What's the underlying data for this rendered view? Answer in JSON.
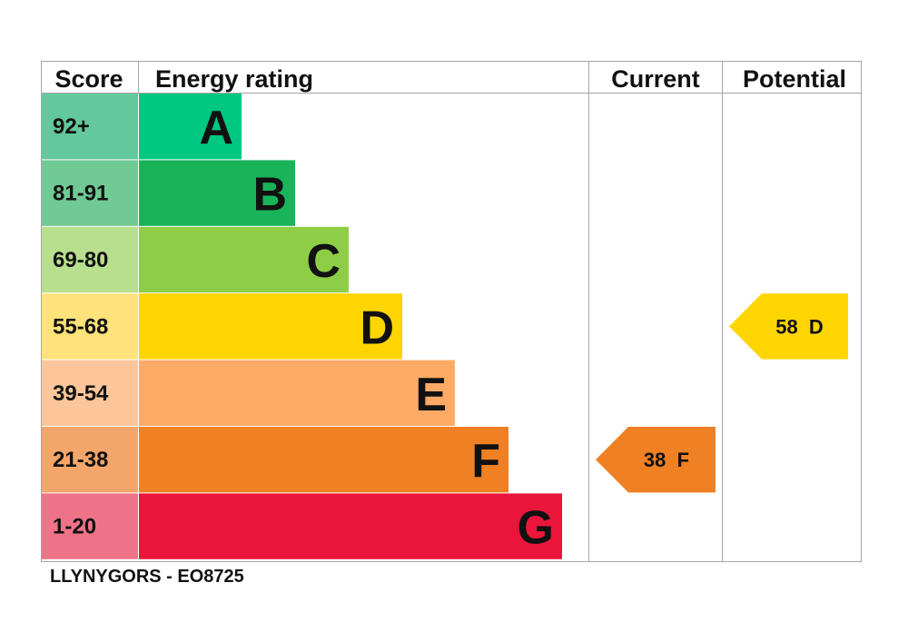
{
  "headers": {
    "score": "Score",
    "energy_rating": "Energy rating",
    "current": "Current",
    "potential": "Potential"
  },
  "footer": "LLYNYGORS - EO8725",
  "chart_data": {
    "type": "bar",
    "bands": [
      {
        "letter": "A",
        "score_range": "92+",
        "color": "#00c781",
        "score_color": "#63c89b"
      },
      {
        "letter": "B",
        "score_range": "81-91",
        "color": "#19b459",
        "score_color": "#6fca94"
      },
      {
        "letter": "C",
        "score_range": "69-80",
        "color": "#8dce46",
        "score_color": "#b8df8e"
      },
      {
        "letter": "D",
        "score_range": "55-68",
        "color": "#ffd500",
        "score_color": "#ffe27a"
      },
      {
        "letter": "E",
        "score_range": "39-54",
        "color": "#fcaa65",
        "score_color": "#fcc69a"
      },
      {
        "letter": "F",
        "score_range": "21-38",
        "color": "#ef8023",
        "score_color": "#f4a66a"
      },
      {
        "letter": "G",
        "score_range": "1-20",
        "color": "#e9153b",
        "score_color": "#ee7389"
      }
    ],
    "current": {
      "score": 38,
      "letter": "F",
      "label": "38  F",
      "color": "#ef8023"
    },
    "potential": {
      "score": 58,
      "letter": "D",
      "label": "58  D",
      "color": "#ffd500"
    }
  }
}
